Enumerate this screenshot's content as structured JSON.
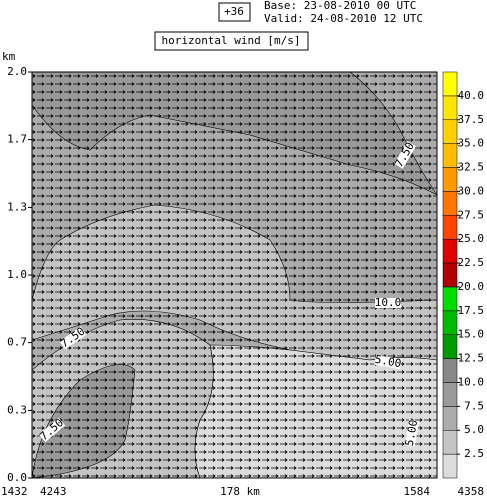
{
  "header": {
    "forecast": "+36",
    "base": "Base: 23-08-2010  00 UTC",
    "valid": "Valid: 24-08-2010  12 UTC",
    "field": "horizontal wind [m/s]"
  },
  "chart_data": {
    "type": "cross-section",
    "y_label": "km",
    "ylim": [
      0,
      2
    ],
    "yticks": [
      {
        "value": 0,
        "label": "0.0"
      },
      {
        "value": 0.333,
        "label": "0.3"
      },
      {
        "value": 0.667,
        "label": "0.7"
      },
      {
        "value": 1,
        "label": "1.0"
      },
      {
        "value": 1.333,
        "label": "1.3"
      },
      {
        "value": 1.667,
        "label": "1.7"
      },
      {
        "value": 2,
        "label": "2.0"
      }
    ],
    "x_labels": [
      "1432",
      "4243",
      "178 km",
      "1584",
      "4358"
    ],
    "colorbar": {
      "levels": [
        0,
        2.5,
        5,
        7.5,
        10,
        12.5,
        15,
        17.5,
        20,
        22.5,
        25,
        27.5,
        30,
        32.5,
        35,
        37.5,
        40,
        42.5
      ],
      "colors": [
        "#dcdcdc",
        "#c4c4c4",
        "#acacac",
        "#9a9a9a",
        "#888888",
        "#009900",
        "#00bb00",
        "#00dd00",
        "#b00000",
        "#e00000",
        "#ff4400",
        "#ff7700",
        "#ff9900",
        "#ffbb00",
        "#ffd000",
        "#ffe600",
        "#ffff00"
      ],
      "ticks": [
        2.5,
        {
          "value": 5,
          "label": "5.0"
        },
        7.5,
        {
          "value": 10,
          "label": "10.0"
        },
        12.5,
        {
          "value": 15,
          "label": "15.0"
        },
        17.5,
        {
          "value": 20,
          "label": "20.0"
        },
        22.5,
        {
          "value": 25,
          "label": "25.0"
        },
        27.5,
        {
          "value": 30,
          "label": "30.0"
        },
        32.5,
        {
          "value": 35,
          "label": "35.0"
        },
        37.5,
        {
          "value": 40,
          "label": "40.0"
        }
      ]
    },
    "contour_labels": [
      "7.50",
      "10.0",
      "5.00",
      "7.50",
      "5.00",
      "7.50"
    ]
  }
}
